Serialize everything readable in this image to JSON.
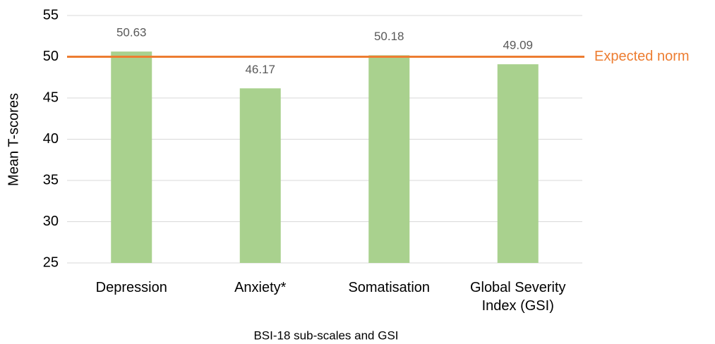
{
  "chart_data": {
    "type": "bar",
    "categories": [
      "Depression",
      "Anxiety*",
      "Somatisation",
      "Global Severity Index (GSI)"
    ],
    "values": [
      50.63,
      46.17,
      50.18,
      49.09
    ],
    "color": "#a9d18e",
    "xlabel": "BSI-18 sub-scales and GSI",
    "ylabel": "Mean T-scores",
    "ylim": [
      25,
      55
    ],
    "yticks": [
      25,
      30,
      35,
      40,
      45,
      50,
      55
    ],
    "grid": true,
    "reference_line": {
      "value": 50,
      "label": "Expected norm",
      "color": "#ed7d31"
    }
  }
}
